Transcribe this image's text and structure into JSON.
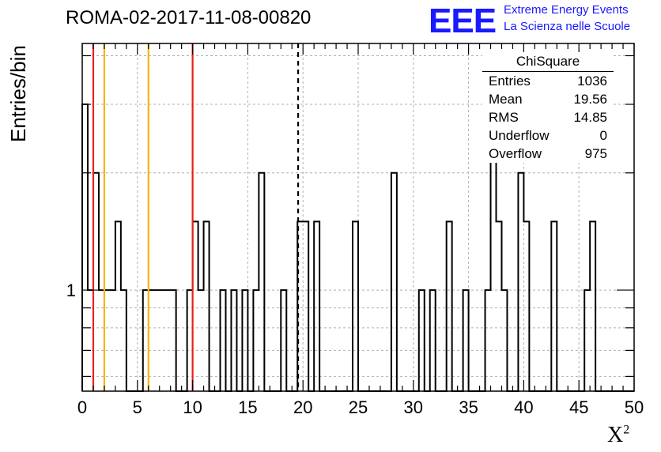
{
  "header": {
    "title": "ROMA-02-2017-11-08-00820",
    "logo_text": "EEE",
    "logo_line1": "Extreme Energy Events",
    "logo_line2": "La Scienza nelle Scuole",
    "logo_color": "#1a1aff"
  },
  "stats_box": {
    "title": "ChiSquare",
    "rows": [
      {
        "label": "Entries",
        "value": "1036"
      },
      {
        "label": "Mean",
        "value": "19.56"
      },
      {
        "label": "RMS",
        "value": "14.85"
      },
      {
        "label": "Underflow",
        "value": "0"
      },
      {
        "label": "Overflow",
        "value": "975"
      }
    ]
  },
  "chart_data": {
    "type": "bar",
    "histogram": "step",
    "xlabel": "X",
    "xlabel_sup": "2",
    "ylabel": "Entries/bin",
    "xlim": [
      0,
      50
    ],
    "ylim": [
      0.55,
      4.3
    ],
    "y_log": true,
    "y_tick_labels": [
      {
        "value": 1,
        "label": "1"
      }
    ],
    "x_ticks": [
      0,
      5,
      10,
      15,
      20,
      25,
      30,
      35,
      40,
      45,
      50
    ],
    "grid": true,
    "bin_width": 0.5,
    "bins": [
      {
        "x": 0.0,
        "y": 3
      },
      {
        "x": 0.5,
        "y": 1
      },
      {
        "x": 1.0,
        "y": 2
      },
      {
        "x": 1.5,
        "y": 1
      },
      {
        "x": 2.0,
        "y": 1
      },
      {
        "x": 2.5,
        "y": 1
      },
      {
        "x": 3.0,
        "y": 1.5
      },
      {
        "x": 3.5,
        "y": 1
      },
      {
        "x": 5.5,
        "y": 1
      },
      {
        "x": 6.0,
        "y": 1
      },
      {
        "x": 6.5,
        "y": 1
      },
      {
        "x": 7.0,
        "y": 1
      },
      {
        "x": 7.5,
        "y": 1
      },
      {
        "x": 8.0,
        "y": 1
      },
      {
        "x": 9.5,
        "y": 1
      },
      {
        "x": 10.0,
        "y": 1.5
      },
      {
        "x": 10.5,
        "y": 1
      },
      {
        "x": 11.0,
        "y": 1.5
      },
      {
        "x": 12.5,
        "y": 1
      },
      {
        "x": 13.5,
        "y": 1
      },
      {
        "x": 14.5,
        "y": 1
      },
      {
        "x": 15.5,
        "y": 1
      },
      {
        "x": 16.0,
        "y": 2
      },
      {
        "x": 18.0,
        "y": 1
      },
      {
        "x": 19.5,
        "y": 1.5
      },
      {
        "x": 20.0,
        "y": 1.5
      },
      {
        "x": 21.0,
        "y": 1.5
      },
      {
        "x": 24.5,
        "y": 1.5
      },
      {
        "x": 28.0,
        "y": 2
      },
      {
        "x": 30.5,
        "y": 1
      },
      {
        "x": 31.5,
        "y": 1
      },
      {
        "x": 33.0,
        "y": 1.5
      },
      {
        "x": 34.5,
        "y": 1
      },
      {
        "x": 36.5,
        "y": 1
      },
      {
        "x": 37.0,
        "y": 3
      },
      {
        "x": 37.5,
        "y": 1.5
      },
      {
        "x": 38.0,
        "y": 1
      },
      {
        "x": 39.5,
        "y": 2
      },
      {
        "x": 40.0,
        "y": 1.5
      },
      {
        "x": 42.5,
        "y": 1.5
      },
      {
        "x": 45.5,
        "y": 1
      },
      {
        "x": 46.0,
        "y": 1.5
      }
    ],
    "reference_lines": [
      {
        "x": 1.0,
        "color": "#e8201e",
        "style": "solid"
      },
      {
        "x": 2.0,
        "color": "#f4b60c",
        "style": "solid"
      },
      {
        "x": 6.0,
        "color": "#f4b60c",
        "style": "solid"
      },
      {
        "x": 10.0,
        "color": "#e8201e",
        "style": "solid"
      },
      {
        "x": 19.56,
        "color": "#000000",
        "style": "dashed"
      }
    ]
  }
}
